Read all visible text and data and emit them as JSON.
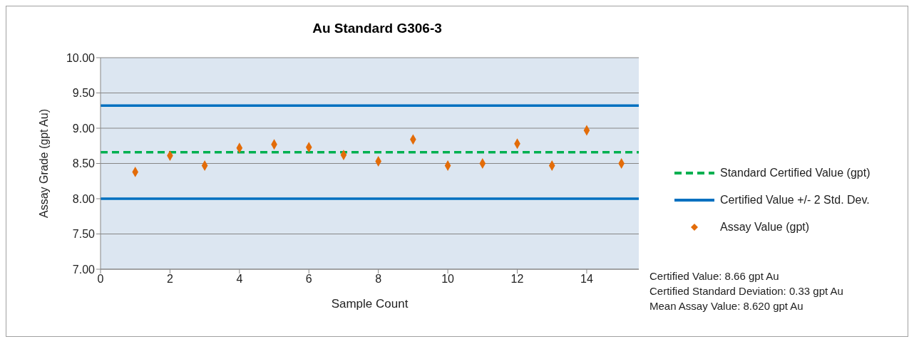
{
  "chart_data": {
    "type": "scatter",
    "title": "Au Standard G306-3",
    "xlabel": "Sample Count",
    "ylabel": "Assay Grade (gpt Au)",
    "xlim": [
      0,
      15.5
    ],
    "xticks": [
      0,
      2,
      4,
      6,
      8,
      10,
      12,
      14
    ],
    "ylim": [
      7,
      10
    ],
    "yticks": [
      {
        "value": 7,
        "label": "7.00"
      },
      {
        "value": 7.5,
        "label": "7.50"
      },
      {
        "value": 8,
        "label": "8.00"
      },
      {
        "value": 8.5,
        "label": "8.50"
      },
      {
        "value": 9,
        "label": "9.00"
      },
      {
        "value": 9.5,
        "label": "9.50"
      },
      {
        "value": 10,
        "label": "10.00"
      }
    ],
    "grid": "y",
    "legend": "right",
    "marker": "diamond",
    "series": [
      {
        "name": "Standard Certified Value (gpt)",
        "type": "line",
        "line_style": "dashed",
        "marker": "none",
        "color": "#00b050",
        "x": [
          0,
          15.5
        ],
        "values": [
          8.66,
          8.66
        ]
      },
      {
        "name": "Certified Value +/- 2 Std. Dev.",
        "type": "line",
        "line_style": "solid",
        "marker": "none",
        "color": "#0070c0",
        "x": [
          0,
          15.5
        ],
        "values": [
          9.32,
          9.32
        ]
      },
      {
        "type": "line",
        "line_style": "solid",
        "marker": "none",
        "color": "#0070c0",
        "x": [
          0,
          15.5
        ],
        "values": [
          8.0,
          8.0
        ]
      },
      {
        "name": "Assay Value (gpt)",
        "color": "#e36c09",
        "x": [
          1,
          2,
          3,
          4,
          5,
          6,
          7,
          8,
          9,
          10,
          11,
          12,
          13,
          14,
          15
        ],
        "values": [
          8.38,
          8.61,
          8.47,
          8.72,
          8.77,
          8.73,
          8.62,
          8.53,
          8.84,
          8.47,
          8.5,
          8.78,
          8.47,
          8.97,
          8.5
        ]
      }
    ],
    "annotations": [
      "Certified Value: 8.66 gpt Au",
      "Certified Standard Deviation: 0.33 gpt Au",
      "Mean Assay Value: 8.620 gpt Au"
    ]
  }
}
